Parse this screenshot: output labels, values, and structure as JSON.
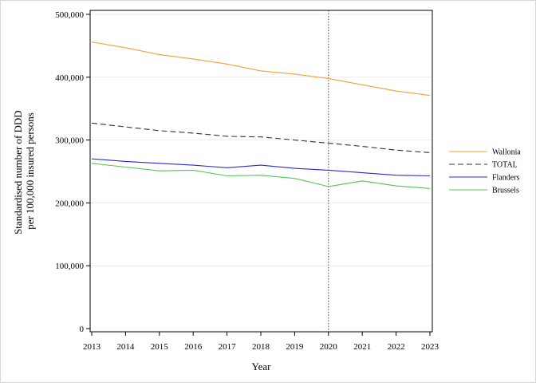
{
  "chart_data": {
    "type": "line",
    "title": "",
    "xlabel": "Year",
    "ylabel_lines": [
      "Standardised number of DDD",
      "per 100,000 insured persons"
    ],
    "x": [
      2013,
      2014,
      2015,
      2016,
      2017,
      2018,
      2019,
      2020,
      2021,
      2022,
      2023
    ],
    "x_tick_labels": [
      "2013",
      "2014",
      "2015",
      "2016",
      "2017",
      "2018",
      "2019",
      "2020",
      "2021",
      "2022",
      "2023"
    ],
    "ylim": [
      0,
      500000
    ],
    "y_ticks": [
      0,
      100000,
      200000,
      300000,
      400000,
      500000
    ],
    "y_tick_labels": [
      "0",
      "100,000",
      "200,000",
      "300,000",
      "400,000",
      "500,000"
    ],
    "grid": "horizontal",
    "reference_line_x": 2020,
    "legend_position": "right",
    "series": [
      {
        "name": "Wallonia",
        "color": "#f5a033",
        "dash": "solid",
        "values": [
          456000,
          447000,
          436000,
          429000,
          421000,
          410000,
          405000,
          398000,
          388000,
          378000,
          371000
        ]
      },
      {
        "name": "TOTAL",
        "color": "#333333",
        "dash": "dashed",
        "values": [
          327000,
          321000,
          315000,
          311000,
          306000,
          305000,
          300000,
          295000,
          290000,
          284000,
          280000
        ]
      },
      {
        "name": "Flanders",
        "color": "#2a2ad6",
        "dash": "solid",
        "values": [
          270000,
          266000,
          263000,
          260000,
          256000,
          260000,
          255000,
          252000,
          248000,
          244000,
          243000
        ]
      },
      {
        "name": "Brussels",
        "color": "#4fc84f",
        "dash": "solid",
        "values": [
          263000,
          257000,
          251000,
          252000,
          243000,
          244000,
          239000,
          226000,
          235000,
          227000,
          223000
        ]
      }
    ]
  }
}
